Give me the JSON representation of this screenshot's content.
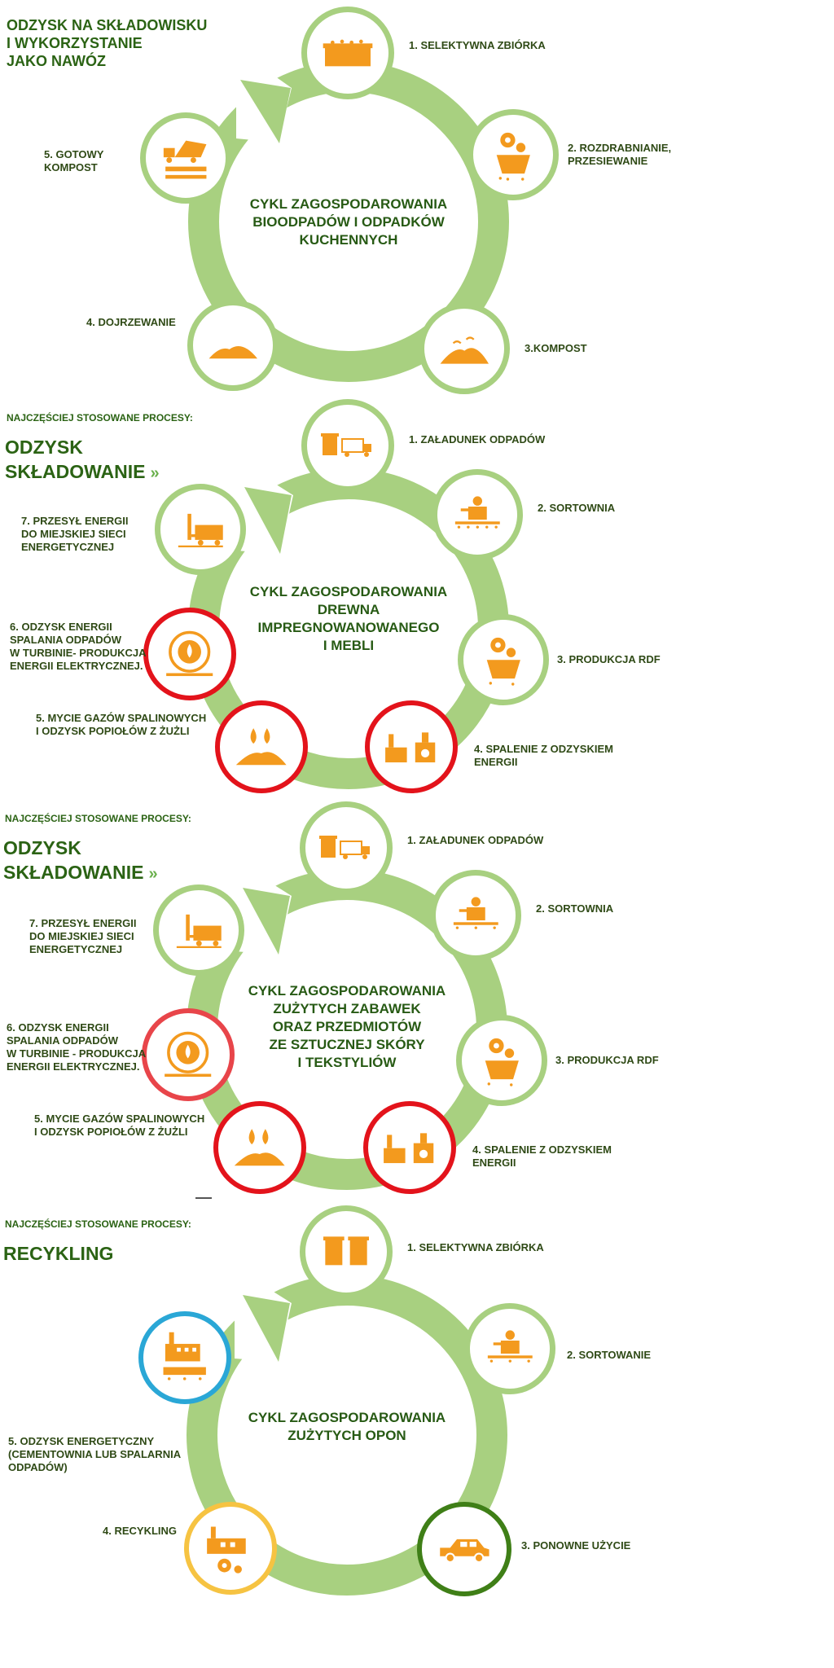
{
  "section1": {
    "heading": "ODZYSK NA SKŁADOWISKU\nI WYKORZYSTANIE\nJAKO NAWÓZ",
    "center": "CYKL ZAGOSPODAROWANIA\nBIOODPADÓW I ODPADKÓW\nKUCHENNYCH",
    "steps": [
      "1. SELEKTYWNA ZBIÓRKA",
      "2. ROZDRABNIANIE,\nPRZESIEWANIE",
      "3.KOMPOST",
      "4. DOJRZEWANIE",
      "5. GOTOWY\nKOMPOST"
    ]
  },
  "section2": {
    "processes_label": "NAJCZĘŚCIEJ STOSOWANE PROCESY:",
    "process_1": "ODZYSK",
    "process_2": "SKŁADOWANIE",
    "chevron": "»",
    "center": "CYKL ZAGOSPODAROWANIA\nDREWNA\nIMPREGNOWANOWANEGO\nI MEBLI",
    "steps": [
      "1. ZAŁADUNEK ODPADÓW",
      "2. SORTOWNIA",
      "3. PRODUKCJA RDF",
      "4.  SPALENIE Z ODZYSKIEM\nENERGII",
      "5. MYCIE GAZÓW SPALINOWYCH\nI ODZYSK POPIOŁÓW Z ŻUŻLI",
      "6. ODZYSK ENERGII\nSPALANIA ODPADÓW\nW TURBINIE- PRODUKCJA\nENERGII ELEKTRYCZNEJ.",
      "7. PRZESYŁ ENERGII\nDO MIEJSKIEJ SIECI\nENERGETYCZNEJ"
    ]
  },
  "section3": {
    "processes_label": "NAJCZĘŚCIEJ STOSOWANE PROCESY:",
    "process_1": "ODZYSK",
    "process_2": "SKŁADOWANIE",
    "chevron": "»",
    "center": "CYKL ZAGOSPODAROWANIA\nZUŻYTYCH ZABAWEK\nORAZ PRZEDMIOTÓW\nZE SZTUCZNEJ SKÓRY\nI TEKSTYLIÓW",
    "steps": [
      "1. ZAŁADUNEK ODPADÓW",
      "2. SORTOWNIA",
      "3. PRODUKCJA RDF",
      "4.  SPALENIE Z ODZYSKIEM\nENERGII",
      "5. MYCIE GAZÓW SPALINOWYCH\nI ODZYSK POPIOŁÓW Z ŻUŻLI",
      "6. ODZYSK ENERGII\nSPALANIA ODPADÓW\nW TURBINIE - PRODUKCJA\nENERGII ELEKTRYCZNEJ.",
      "7. PRZESYŁ ENERGII\nDO MIEJSKIEJ SIECI\nENERGETYCZNEJ"
    ]
  },
  "section4": {
    "processes_label": "NAJCZĘŚCIEJ STOSOWANE PROCESY:",
    "process_1": "RECYKLING",
    "center": "CYKL ZAGOSPODAROWANIA\nZUŻYTYCH OPON",
    "steps": [
      "1. SELEKTYWNA ZBIÓRKA",
      "2.  SORTOWANIE",
      "3. PONOWNE UŻYCIE",
      "4. RECYKLING",
      "5. ODZYSK ENERGETYCZNY\n(CEMENTOWNIA LUB SPALARNIA\nODPADÓW)"
    ]
  },
  "colors": {
    "ring": "#a8d080",
    "icon": "#f39a1e",
    "text": "#2f4a16",
    "red": "#e3131b",
    "blue": "#2aa7d6",
    "yellow": "#f6c342",
    "dark_green": "#3f7f17"
  },
  "icons": {
    "container": "container-icon",
    "gears_box": "gears-icon",
    "compost": "compost-pile-icon",
    "heap": "heap-icon",
    "dump_truck": "dump-truck-icon",
    "bin_truck": "bin-truck-icon",
    "worker": "sorting-worker-icon",
    "forklift": "forklift-icon",
    "turbine": "turbine-icon",
    "drops": "drops-icon",
    "factory": "factory-furnace-icon",
    "bins": "bins-icon",
    "car": "car-icon",
    "plant": "plant-icon"
  }
}
